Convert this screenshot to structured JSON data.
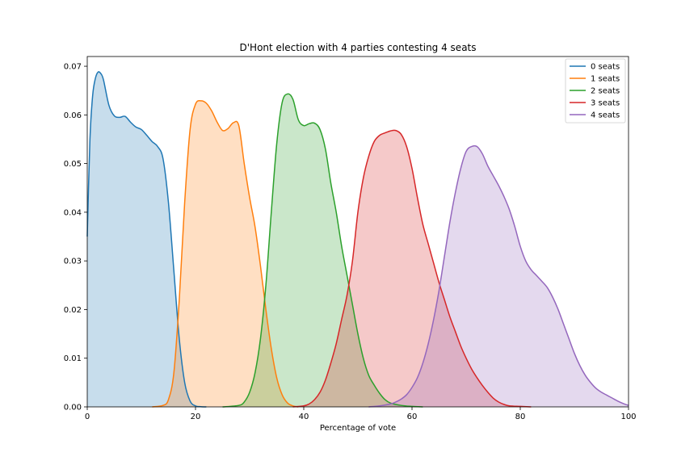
{
  "chart_data": {
    "type": "area",
    "title": "D'Hont election with 4 parties contesting 4 seats",
    "xlabel": "Percentage of vote",
    "ylabel": "",
    "xlim": [
      0,
      100
    ],
    "ylim": [
      0,
      0.072
    ],
    "x_ticks": [
      0,
      20,
      40,
      60,
      80,
      100
    ],
    "y_ticks": [
      0.0,
      0.01,
      0.02,
      0.03,
      0.04,
      0.05,
      0.06,
      0.07
    ],
    "x_tick_labels": [
      "0",
      "20",
      "40",
      "60",
      "80",
      "100"
    ],
    "y_tick_labels": [
      "0.00",
      "0.01",
      "0.02",
      "0.03",
      "0.04",
      "0.05",
      "0.06",
      "0.07"
    ],
    "legend_position": "top-right",
    "grid": false,
    "series": [
      {
        "name": "0 seats",
        "color": "#1f77b4",
        "x": [
          0,
          0.5,
          1,
          1.5,
          2,
          2.5,
          3,
          4,
          5,
          6,
          7,
          8,
          9,
          10,
          11,
          12,
          13,
          14,
          15,
          16,
          17,
          18,
          19,
          20,
          21,
          22
        ],
        "y": [
          0.035,
          0.055,
          0.064,
          0.0675,
          0.0688,
          0.0685,
          0.0672,
          0.062,
          0.0598,
          0.0595,
          0.0597,
          0.0585,
          0.0575,
          0.057,
          0.0558,
          0.0545,
          0.0535,
          0.051,
          0.042,
          0.028,
          0.014,
          0.005,
          0.0012,
          0.0002,
          5e-05,
          0
        ]
      },
      {
        "name": "1 seats",
        "color": "#ff7f0e",
        "x": [
          12,
          14,
          15,
          16,
          17,
          18,
          19,
          20,
          21,
          22,
          23,
          24,
          25,
          26,
          27,
          28,
          29,
          30,
          31,
          32,
          33,
          34,
          35,
          36,
          37,
          38,
          39
        ],
        "y": [
          0,
          0.0003,
          0.0015,
          0.007,
          0.022,
          0.042,
          0.057,
          0.0622,
          0.0629,
          0.0624,
          0.0608,
          0.0585,
          0.0568,
          0.0572,
          0.0584,
          0.0578,
          0.05,
          0.043,
          0.037,
          0.029,
          0.02,
          0.012,
          0.006,
          0.0025,
          0.0008,
          0.0002,
          0
        ]
      },
      {
        "name": "2 seats",
        "color": "#2ca02c",
        "x": [
          25,
          28,
          29,
          30,
          31,
          32,
          33,
          34,
          35,
          36,
          37,
          38,
          39,
          40,
          41,
          42,
          43,
          44,
          45,
          46,
          47,
          48,
          49,
          50,
          51,
          52,
          53,
          54,
          55,
          56,
          58,
          60,
          62
        ],
        "y": [
          0,
          0.0003,
          0.001,
          0.003,
          0.007,
          0.014,
          0.025,
          0.04,
          0.054,
          0.0625,
          0.0643,
          0.0632,
          0.059,
          0.0578,
          0.0582,
          0.0583,
          0.057,
          0.053,
          0.046,
          0.04,
          0.033,
          0.027,
          0.021,
          0.015,
          0.01,
          0.0065,
          0.0045,
          0.0028,
          0.0015,
          0.0008,
          0.0003,
          0.0001,
          0
        ]
      },
      {
        "name": "3 seats",
        "color": "#d62728",
        "x": [
          38,
          40,
          41,
          42,
          43,
          44,
          45,
          46,
          47,
          48,
          49,
          50,
          51,
          52,
          53,
          54,
          55,
          56,
          57,
          58,
          59,
          60,
          61,
          62,
          63,
          64,
          65,
          66,
          67,
          68,
          69,
          70,
          71,
          72,
          73,
          74,
          75,
          76,
          77,
          78,
          80,
          82
        ],
        "y": [
          0,
          0.0002,
          0.0006,
          0.0015,
          0.003,
          0.0055,
          0.009,
          0.013,
          0.018,
          0.023,
          0.03,
          0.04,
          0.047,
          0.0515,
          0.0545,
          0.0558,
          0.0563,
          0.0567,
          0.0568,
          0.056,
          0.0535,
          0.049,
          0.043,
          0.0375,
          0.0335,
          0.0295,
          0.0255,
          0.022,
          0.0185,
          0.0155,
          0.0125,
          0.01,
          0.0078,
          0.006,
          0.0044,
          0.003,
          0.0018,
          0.001,
          0.0005,
          0.0002,
          0.0001,
          0
        ]
      },
      {
        "name": "4 seats",
        "color": "#9467bd",
        "x": [
          52,
          54,
          56,
          57,
          58,
          59,
          60,
          61,
          62,
          63,
          64,
          65,
          66,
          67,
          68,
          69,
          70,
          71,
          72,
          73,
          74,
          75,
          76,
          77,
          78,
          79,
          80,
          81,
          82,
          83,
          84,
          85,
          86,
          87,
          88,
          89,
          90,
          91,
          92,
          93,
          94,
          95,
          96,
          97,
          98,
          99,
          100
        ],
        "y": [
          0,
          0.0002,
          0.0006,
          0.001,
          0.0016,
          0.0025,
          0.004,
          0.006,
          0.009,
          0.013,
          0.018,
          0.024,
          0.031,
          0.038,
          0.044,
          0.049,
          0.0525,
          0.0535,
          0.0535,
          0.052,
          0.0495,
          0.0475,
          0.0455,
          0.0432,
          0.0405,
          0.037,
          0.033,
          0.03,
          0.0282,
          0.027,
          0.0258,
          0.0245,
          0.0225,
          0.02,
          0.017,
          0.014,
          0.011,
          0.0085,
          0.0065,
          0.005,
          0.0038,
          0.003,
          0.0024,
          0.0018,
          0.0012,
          0.0007,
          0.0003
        ]
      }
    ]
  }
}
